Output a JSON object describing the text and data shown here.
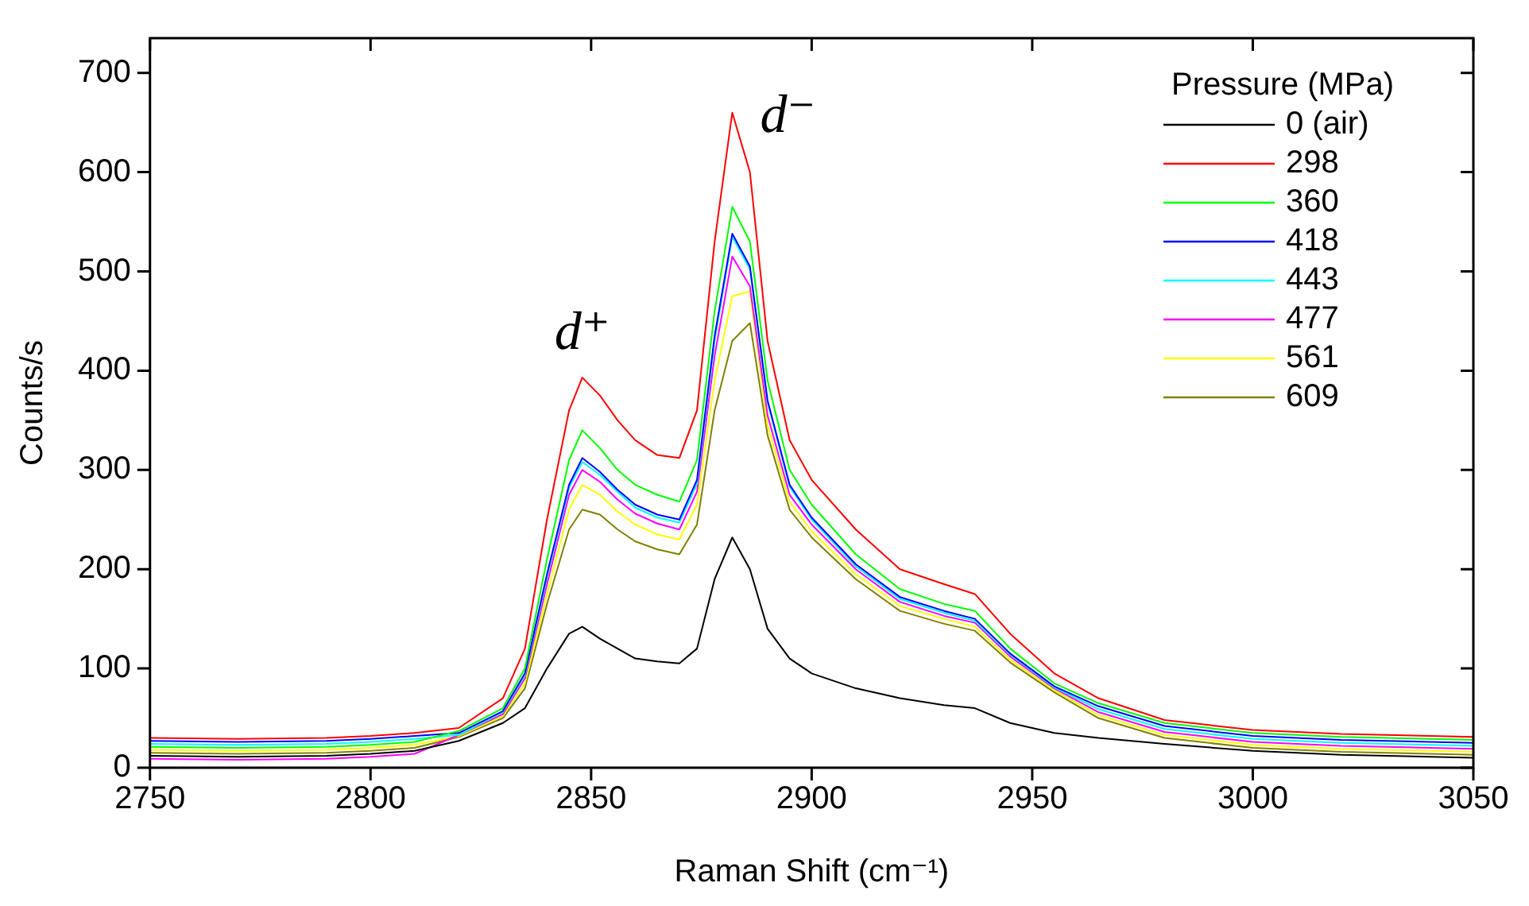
{
  "chart_data": {
    "type": "line",
    "xlabel": "Raman Shift (cm⁻¹)",
    "ylabel": "Counts/s",
    "legend_title": "Pressure (MPa)",
    "legend": "top right",
    "grid": false,
    "marker": "none",
    "line_style": "solid",
    "xlim": [
      2750,
      3050
    ],
    "xticks": [
      2750,
      2800,
      2850,
      2900,
      2950,
      3000,
      3050
    ],
    "ylim": [
      0,
      735
    ],
    "yticks": [
      0,
      100,
      200,
      300,
      400,
      500,
      600,
      700
    ],
    "x": [
      2750,
      2770,
      2790,
      2800,
      2810,
      2820,
      2830,
      2835,
      2840,
      2845,
      2848,
      2852,
      2856,
      2860,
      2865,
      2870,
      2874,
      2878,
      2882,
      2886,
      2890,
      2895,
      2900,
      2910,
      2920,
      2930,
      2937,
      2945,
      2955,
      2965,
      2980,
      3000,
      3020,
      3050
    ],
    "annotations": [
      {
        "text": "d⁺",
        "x": 2848,
        "y": 393
      },
      {
        "text": "d⁻",
        "x": 2882,
        "y": 660
      }
    ],
    "series": [
      {
        "name": "0 (air)",
        "color": "#000000",
        "values": [
          12,
          11,
          12,
          14,
          17,
          27,
          45,
          60,
          100,
          135,
          142,
          130,
          120,
          110,
          107,
          105,
          120,
          190,
          232,
          200,
          140,
          110,
          95,
          80,
          70,
          63,
          60,
          45,
          35,
          30,
          24,
          17,
          13,
          10
        ]
      },
      {
        "name": "298",
        "color": "#ff0000",
        "values": [
          30,
          29,
          30,
          32,
          35,
          40,
          70,
          120,
          250,
          360,
          393,
          375,
          350,
          330,
          315,
          312,
          360,
          530,
          660,
          600,
          430,
          330,
          290,
          240,
          200,
          185,
          175,
          135,
          95,
          70,
          48,
          38,
          34,
          31
        ]
      },
      {
        "name": "360",
        "color": "#00ff00",
        "values": [
          21,
          20,
          21,
          23,
          26,
          37,
          60,
          100,
          210,
          310,
          340,
          322,
          300,
          285,
          275,
          268,
          310,
          460,
          565,
          530,
          390,
          300,
          265,
          215,
          180,
          165,
          158,
          120,
          85,
          65,
          45,
          35,
          31,
          28
        ]
      },
      {
        "name": "418",
        "color": "#0000ff",
        "values": [
          27,
          26,
          27,
          29,
          32,
          35,
          57,
          95,
          195,
          285,
          312,
          298,
          280,
          265,
          255,
          250,
          290,
          435,
          538,
          505,
          370,
          285,
          252,
          205,
          172,
          158,
          150,
          115,
          82,
          62,
          42,
          32,
          28,
          25
        ]
      },
      {
        "name": "443",
        "color": "#00ffff",
        "values": [
          24,
          23,
          24,
          26,
          29,
          33,
          56,
          93,
          192,
          282,
          308,
          295,
          278,
          262,
          252,
          247,
          286,
          430,
          535,
          502,
          368,
          283,
          250,
          203,
          170,
          156,
          148,
          114,
          81,
          59,
          39,
          29,
          25,
          22
        ]
      },
      {
        "name": "477",
        "color": "#ff00ff",
        "values": [
          9,
          8,
          9,
          11,
          14,
          33,
          54,
          90,
          185,
          275,
          300,
          288,
          270,
          256,
          246,
          240,
          278,
          415,
          515,
          485,
          355,
          275,
          245,
          200,
          167,
          153,
          146,
          112,
          80,
          56,
          36,
          26,
          22,
          19
        ]
      },
      {
        "name": "561",
        "color": "#ffff00",
        "values": [
          18,
          17,
          18,
          20,
          23,
          32,
          52,
          85,
          175,
          260,
          285,
          275,
          258,
          245,
          235,
          230,
          265,
          390,
          475,
          480,
          345,
          268,
          238,
          195,
          163,
          150,
          142,
          109,
          78,
          53,
          33,
          23,
          19,
          16
        ]
      },
      {
        "name": "609",
        "color": "#808000",
        "values": [
          15,
          14,
          15,
          17,
          20,
          31,
          50,
          80,
          165,
          240,
          260,
          255,
          240,
          228,
          220,
          215,
          245,
          360,
          430,
          448,
          335,
          260,
          232,
          190,
          158,
          145,
          138,
          106,
          76,
          50,
          30,
          20,
          16,
          13
        ]
      }
    ]
  }
}
